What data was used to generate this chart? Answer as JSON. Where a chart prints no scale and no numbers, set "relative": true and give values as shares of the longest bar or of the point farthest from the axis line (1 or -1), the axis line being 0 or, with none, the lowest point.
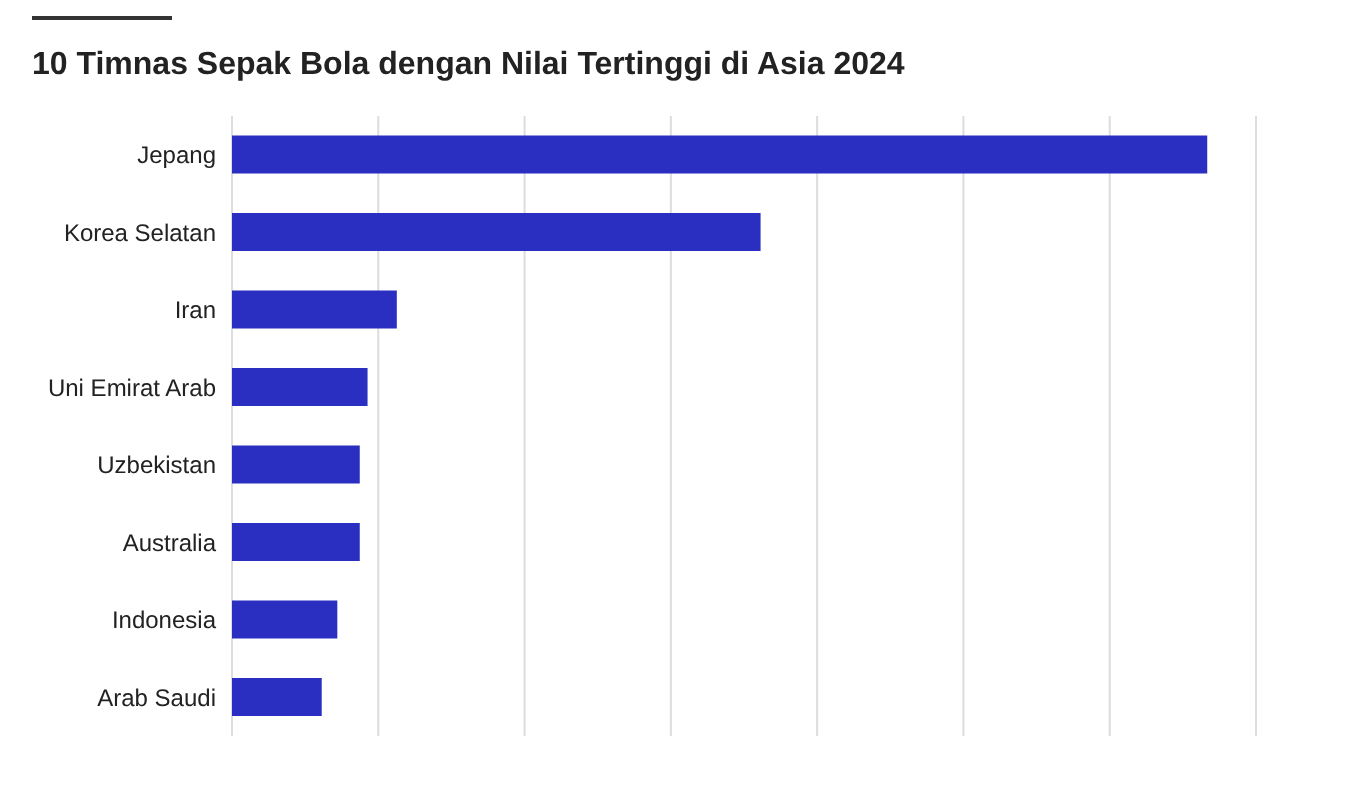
{
  "chart_data": {
    "type": "bar",
    "orientation": "horizontal",
    "relative": true,
    "title": "10 Timnas Sepak Bola dengan Nilai Tertinggi di Asia 2024",
    "categories": [
      "Jepang",
      "Korea Selatan",
      "Iran",
      "Uni Emirat Arab",
      "Uzbekistan",
      "Australia",
      "Indonesia",
      "Arab Saudi"
    ],
    "values": [
      1,
      0.542,
      0.169,
      0.139,
      0.131,
      0.131,
      0.108,
      0.092
    ],
    "color": "#2a2fc2",
    "grid": "x"
  }
}
